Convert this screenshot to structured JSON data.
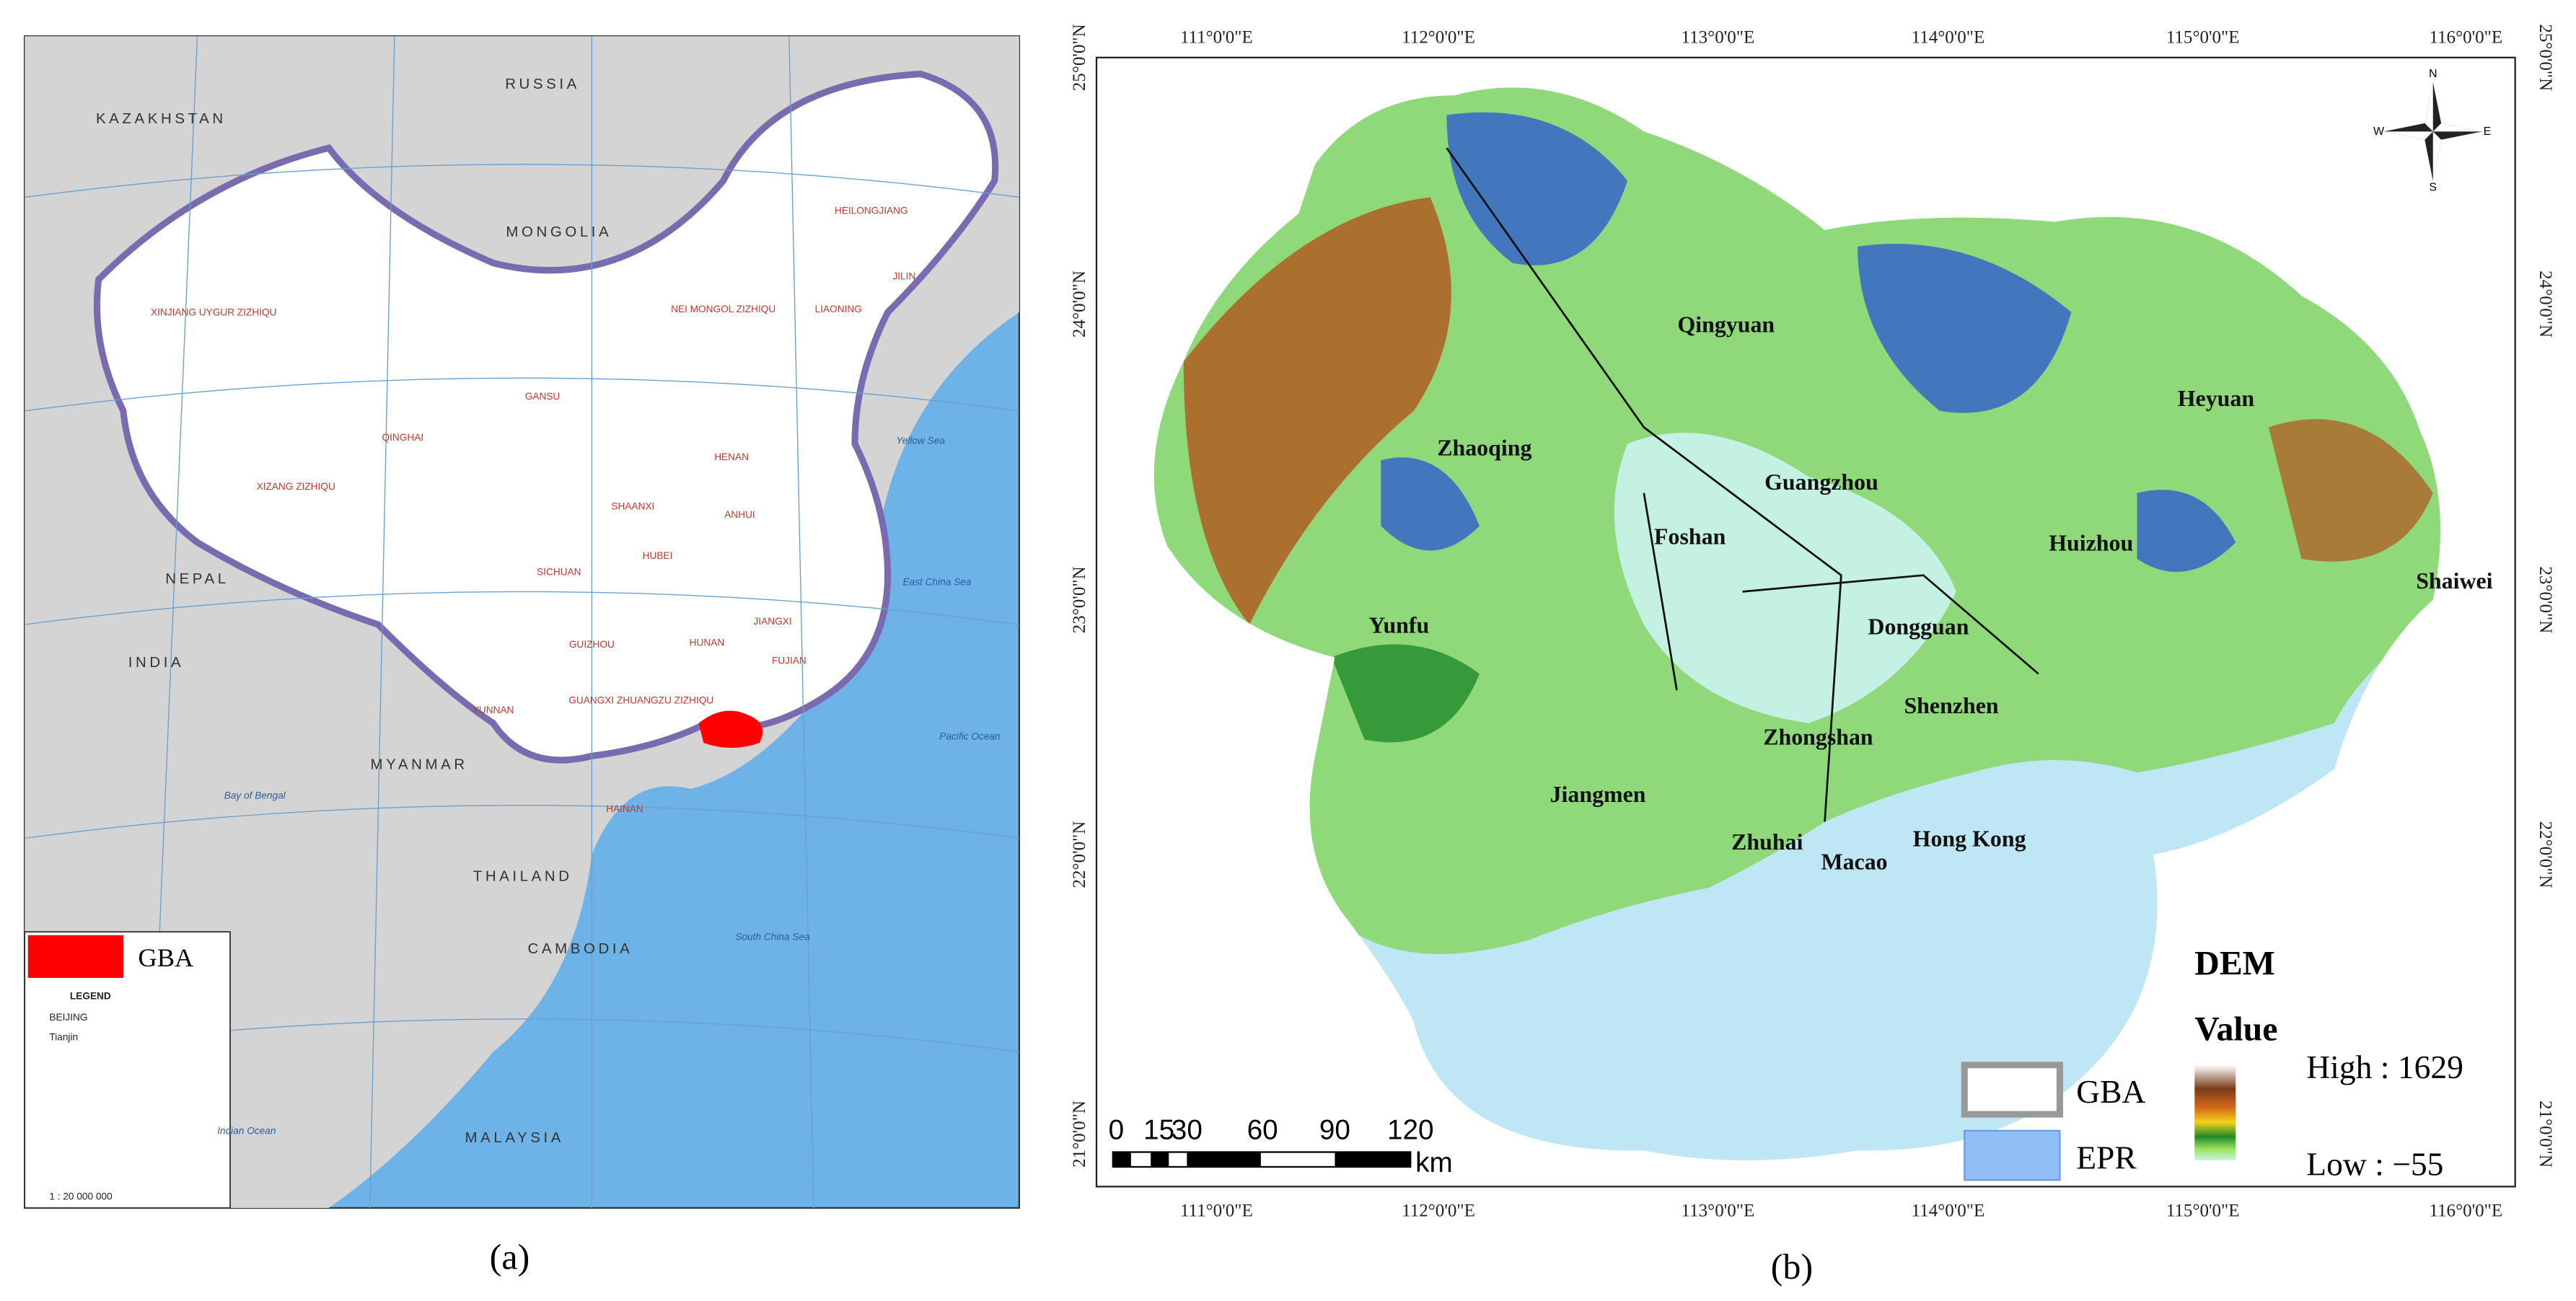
{
  "panel_a": {
    "label": "(a)",
    "legend_entry": "GBA",
    "legend_title": "LEGEND",
    "legend_items": [
      "BEIJING",
      "Tianjin"
    ],
    "scale": "1 : 20 000 000",
    "countries": [
      "RUSSIA",
      "KAZAKHSTAN",
      "MONGOLIA",
      "INDIA",
      "MYANMAR",
      "THAILAND",
      "CAMBODIA",
      "MALAYSIA",
      "NEPAL"
    ],
    "regions": [
      "XINJIANG UYGUR ZIZHIQU",
      "XIZANG ZIZHIQU",
      "QINGHAI",
      "SICHUAN",
      "YUNNAN",
      "GUANGXI ZHUANGZU ZIZHIQU",
      "HAINAN",
      "HUNAN",
      "JIANGXI",
      "HENAN",
      "SHAANXI",
      "GANSU",
      "NEI MONGOL ZIZHIQU",
      "HEILONGJIANG",
      "JILIN",
      "LIAONING",
      "HUBEI",
      "ANHUI",
      "GUIZHOU",
      "FUJIAN"
    ],
    "seas": [
      "Bay of Bengal",
      "South China Sea",
      "East China Sea",
      "Yellow Sea",
      "Indian Ocean",
      "Pacific Ocean"
    ]
  },
  "panel_b": {
    "label": "(b)",
    "cities": [
      "Qingyuan",
      "Zhaoqing",
      "Guangzhou",
      "Heyuan",
      "Foshan",
      "Huizhou",
      "Shaiwei",
      "Yunfu",
      "Dongguan",
      "Shenzhen",
      "Zhongshan",
      "Jiangmen",
      "Zhuhai",
      "Macao",
      "Hong Kong"
    ],
    "lon_labels": [
      "111°0'0\"E",
      "112°0'0\"E",
      "113°0'0\"E",
      "114°0'0\"E",
      "115°0'0\"E",
      "116°0'0\"E"
    ],
    "lat_labels": [
      "25°0'0\"N",
      "24°0'0\"N",
      "23°0'0\"N",
      "22°0'0\"N",
      "21°0'0\"N"
    ],
    "compass": [
      "N",
      "E",
      "S",
      "W"
    ],
    "scale_labels": [
      "0",
      "15",
      "30",
      "60",
      "90",
      "120"
    ],
    "scale_unit": "km",
    "legend": {
      "title": "DEM",
      "subtitle": "Value",
      "high": "High : 1629",
      "low": "Low : −55",
      "gba": "GBA",
      "epr": "EPR"
    }
  }
}
